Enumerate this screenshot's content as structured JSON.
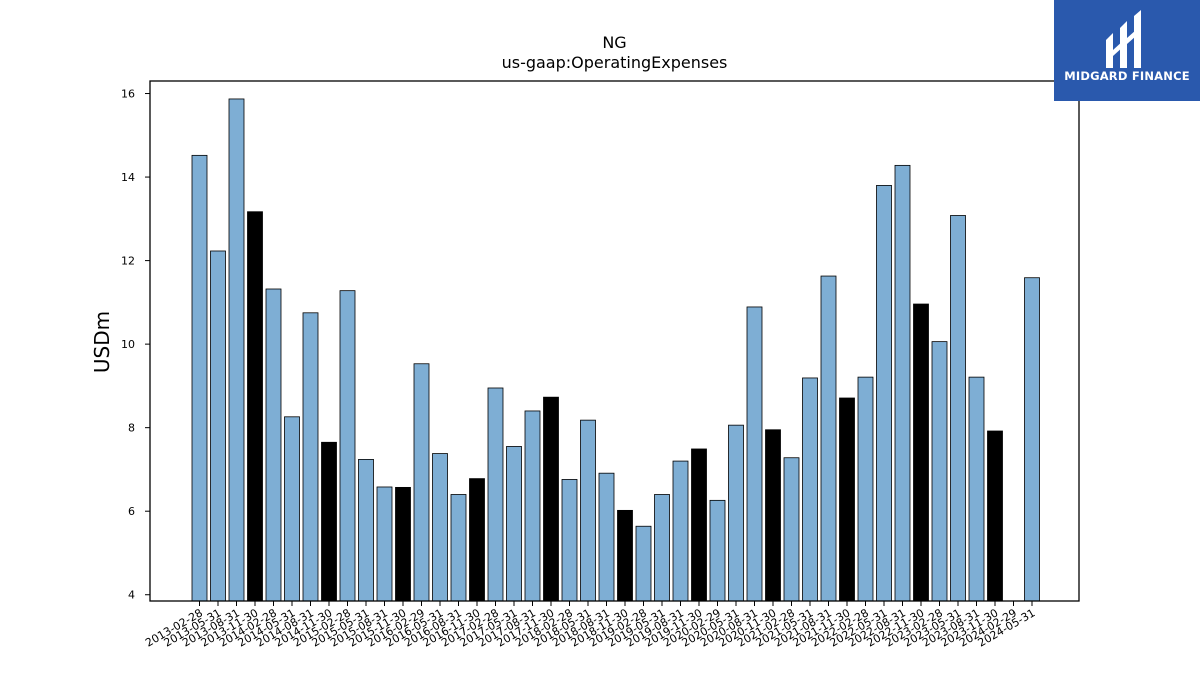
{
  "logo": {
    "name": "MIDGARD FINANCE",
    "bg_color": "#2a59ad"
  },
  "chart_data": {
    "type": "bar",
    "title": "NG",
    "subtitle": "us-gaap:OperatingExpenses",
    "xlabel": "",
    "ylabel": "USDm",
    "ylim": [
      3.85,
      16.3
    ],
    "yticks": [
      4,
      6,
      8,
      10,
      12,
      14,
      16
    ],
    "colors": {
      "quarter": "#7eaed4",
      "fiscal_year": "#000000"
    },
    "categories": [
      "2013-02-28",
      "2013-05-31",
      "2013-08-31",
      "2013-11-30",
      "2014-02-28",
      "2014-05-31",
      "2014-08-31",
      "2014-11-30",
      "2015-02-28",
      "2015-05-31",
      "2015-08-31",
      "2015-11-30",
      "2016-02-29",
      "2016-05-31",
      "2016-08-31",
      "2016-11-30",
      "2017-02-28",
      "2017-05-31",
      "2017-08-31",
      "2017-11-30",
      "2018-02-28",
      "2018-05-31",
      "2018-08-31",
      "2018-11-30",
      "2019-02-28",
      "2019-05-31",
      "2019-08-31",
      "2019-11-30",
      "2020-02-29",
      "2020-05-31",
      "2020-08-31",
      "2020-11-30",
      "2021-02-28",
      "2021-05-31",
      "2021-08-31",
      "2021-11-30",
      "2022-02-28",
      "2022-05-31",
      "2022-08-31",
      "2022-11-30",
      "2023-02-28",
      "2023-05-31",
      "2023-08-31",
      "2023-11-30",
      "2024-02-29",
      "2024-05-31"
    ],
    "values": [
      14.52,
      12.23,
      15.87,
      13.17,
      11.32,
      8.26,
      10.75,
      7.65,
      11.28,
      7.24,
      6.58,
      6.57,
      9.53,
      7.38,
      6.4,
      6.78,
      8.95,
      7.55,
      8.4,
      8.73,
      6.76,
      8.18,
      6.91,
      6.02,
      5.64,
      6.4,
      7.2,
      7.49,
      6.26,
      8.06,
      10.89,
      7.95,
      7.28,
      9.19,
      11.63,
      8.71,
      9.21,
      13.8,
      14.28,
      10.96,
      10.06,
      13.08,
      9.21,
      7.92,
      null,
      11.59
    ],
    "fiscal_year_end": [
      false,
      false,
      false,
      true,
      false,
      false,
      false,
      true,
      false,
      false,
      false,
      true,
      false,
      false,
      false,
      true,
      false,
      false,
      false,
      true,
      false,
      false,
      false,
      true,
      false,
      false,
      false,
      true,
      false,
      false,
      false,
      true,
      false,
      false,
      false,
      true,
      false,
      false,
      false,
      true,
      false,
      false,
      false,
      true,
      false,
      false
    ]
  }
}
